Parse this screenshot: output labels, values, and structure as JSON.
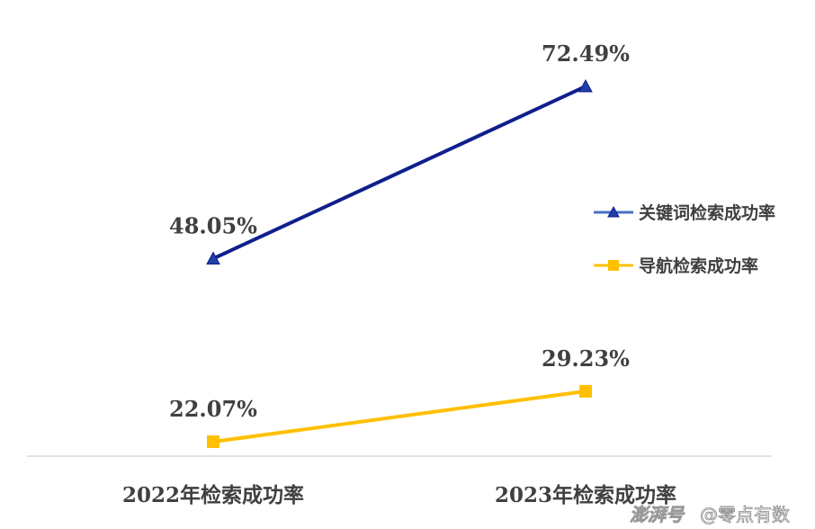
{
  "chart_data": {
    "type": "line",
    "categories": [
      "2022年检索成功率",
      "2023年检索成功率"
    ],
    "series": [
      {
        "name": "关键词检索成功率",
        "values": [
          48.05,
          72.49
        ],
        "labels": [
          "48.05%",
          "72.49%"
        ],
        "color": "#0f1f8c",
        "marker": "triangle"
      },
      {
        "name": "导航检索成功率",
        "values": [
          22.07,
          29.23
        ],
        "labels": [
          "22.07%",
          "29.23%"
        ],
        "color": "#ffc000",
        "marker": "square"
      }
    ],
    "ylim": [
      16,
      80
    ],
    "grid": false,
    "legend": "right"
  },
  "colors": {
    "axis": "#d9d9d9",
    "legend_line_blue": "#4472c4"
  },
  "watermark": {
    "left": "澎湃号",
    "right": "@零点有数"
  }
}
